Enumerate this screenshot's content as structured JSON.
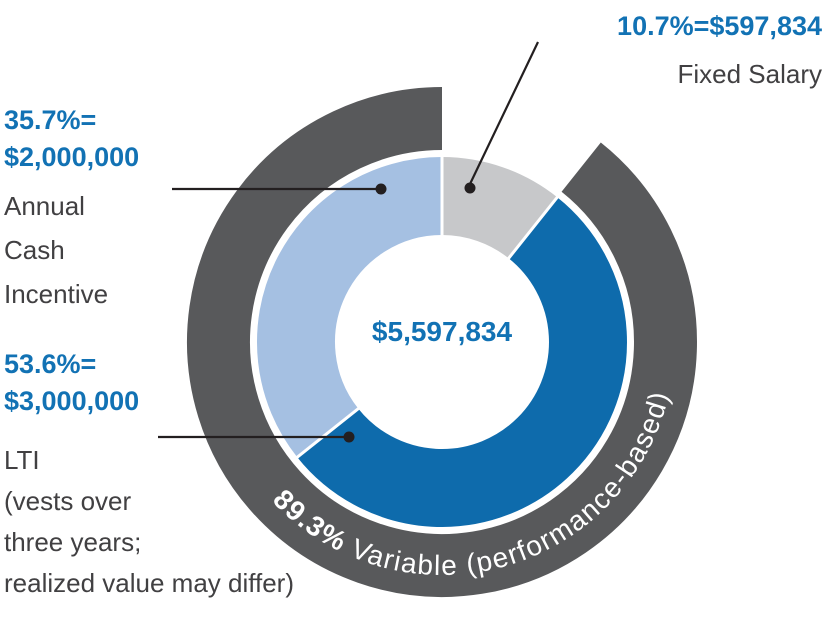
{
  "colors": {
    "blue": "#1272b4",
    "dark_blue_segment": "#0e6bac",
    "light_blue_segment": "#a5c0e2",
    "gray_segment": "#c7c8ca",
    "ring_gray": "#58595b",
    "dark_text": "#414042",
    "leader": "#231f20"
  },
  "chart_data": {
    "type": "pie",
    "subtype": "donut-with-outer-ring",
    "center_total": "$5,597,834",
    "total_value": 5597834,
    "segments": [
      {
        "name": "Fixed Salary",
        "percent": 10.7,
        "value": 597834,
        "value_label": "$597,834",
        "color_key": "gray_segment"
      },
      {
        "name": "LTI",
        "percent": 53.6,
        "value": 3000000,
        "value_label": "$3,000,000",
        "color_key": "dark_blue_segment"
      },
      {
        "name": "Annual Cash Incentive",
        "percent": 35.7,
        "value": 2000000,
        "value_label": "$2,000,000",
        "color_key": "light_blue_segment"
      }
    ],
    "outer_ring": {
      "percent": 89.3,
      "label_bold": "89.3%",
      "label_rest": " Variable (performance-based)"
    },
    "legend_position": "outside-callouts"
  },
  "labels": {
    "fixed_salary": {
      "value_line": "10.7%=$597,834",
      "name_line": "Fixed Salary"
    },
    "annual_cash_incentive": {
      "percent_line": "35.7%=",
      "value_line": "$2,000,000",
      "desc_lines": [
        "Annual",
        "Cash",
        "Incentive"
      ]
    },
    "lti": {
      "percent_line": "53.6%=",
      "value_line": "$3,000,000",
      "desc_lines": [
        "LTI",
        "(vests over",
        "three years;",
        "realized value may differ)"
      ]
    }
  }
}
